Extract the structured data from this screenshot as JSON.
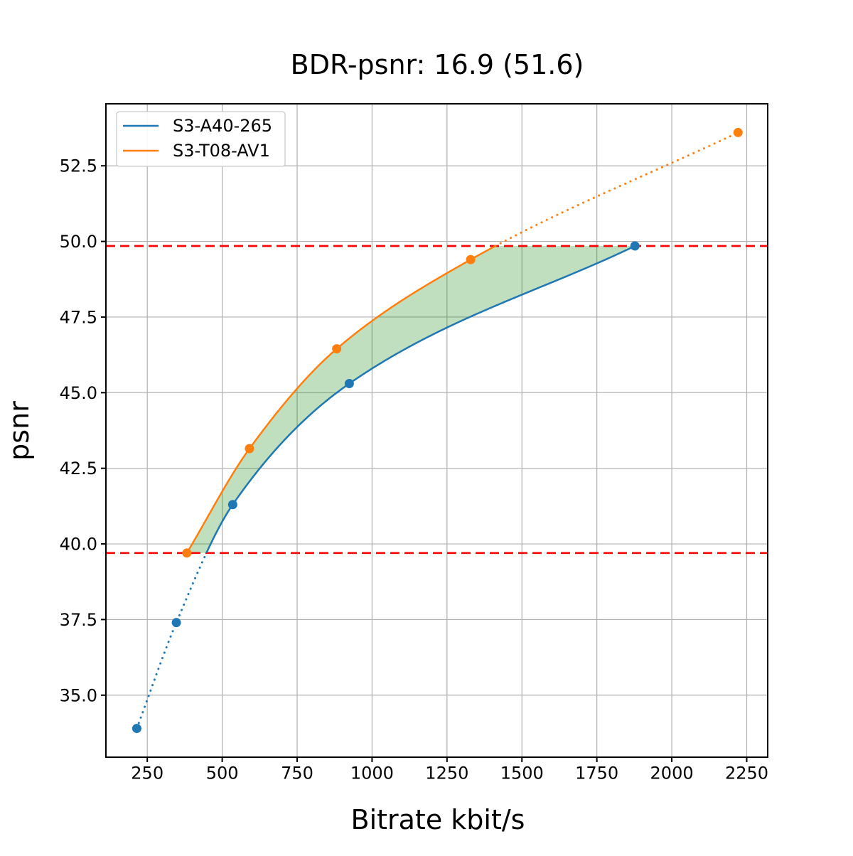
{
  "title": "BDR-psnr: 16.9 (51.6)",
  "chart_data": {
    "type": "line",
    "title": "BDR-psnr: 16.9 (51.6)",
    "xlabel": "Bitrate kbit/s",
    "ylabel": "psnr",
    "xlim": [
      112,
      2320
    ],
    "ylim": [
      32.95,
      54.55
    ],
    "xticks": [
      250,
      500,
      750,
      1000,
      1250,
      1500,
      1750,
      2000,
      2250
    ],
    "yticks": [
      35.0,
      37.5,
      40.0,
      42.5,
      45.0,
      47.5,
      50.0,
      52.5
    ],
    "grid": true,
    "legend": {
      "position": "upper left",
      "entries": [
        "S3-A40-265",
        "S3-T08-AV1"
      ]
    },
    "series": [
      {
        "name": "S3-A40-265",
        "color": "#1f77b4",
        "marker": "circle",
        "x": [
          215,
          347,
          535,
          924,
          1877
        ],
        "y": [
          33.9,
          37.4,
          41.3,
          45.3,
          49.85
        ]
      },
      {
        "name": "S3-T08-AV1",
        "color": "#ff7f0e",
        "marker": "circle",
        "x": [
          382,
          591,
          882,
          1329,
          2221
        ],
        "y": [
          39.7,
          43.15,
          46.45,
          49.4,
          53.6
        ]
      }
    ],
    "reference_lines": [
      {
        "y": 39.7,
        "color": "#ff0000",
        "style": "dashed"
      },
      {
        "y": 49.85,
        "color": "#ff0000",
        "style": "dashed"
      }
    ],
    "shaded_region": {
      "between": [
        "S3-T08-AV1",
        "S3-A40-265"
      ],
      "y_range": [
        39.7,
        49.85
      ],
      "color": "#008000",
      "alpha": 0.25
    },
    "colors": {
      "grid": "#b0b0b0",
      "spine": "#000000",
      "background": "#ffffff"
    }
  }
}
